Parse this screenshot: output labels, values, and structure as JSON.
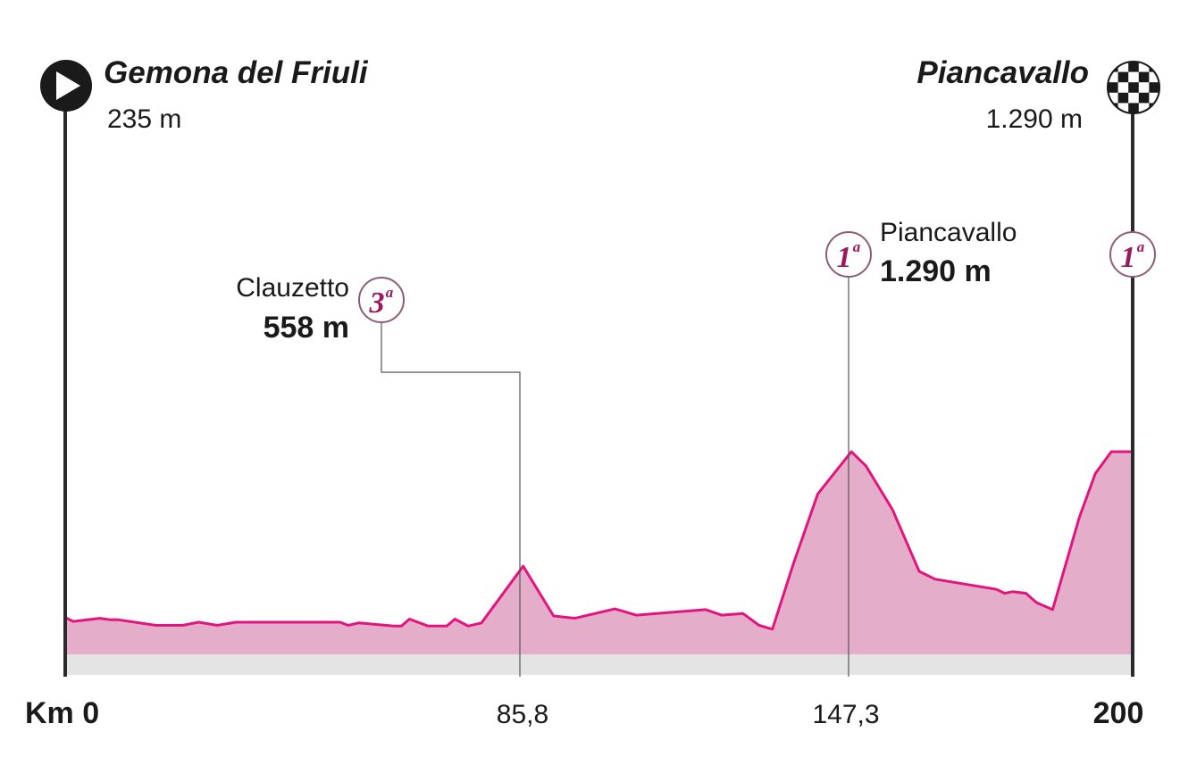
{
  "colors": {
    "profile_fill": "#e4aeca",
    "profile_line": "#e2157e",
    "ground": "#e4e4e4",
    "pole": "#2a2a2a",
    "leader": "#555555",
    "badge_border": "#8d5d77",
    "badge_text": "#9b1a5c"
  },
  "chart_data": {
    "type": "area",
    "xlim": [
      0,
      200
    ],
    "x_ticks": [
      {
        "value": 0,
        "label": "Km 0"
      },
      {
        "value": 85.8,
        "label": "85,8"
      },
      {
        "value": 147.3,
        "label": "147,3"
      },
      {
        "value": 200,
        "label": "200"
      }
    ],
    "start": {
      "name": "Gemona del Friuli",
      "altitude": "235 m",
      "icon": "start-play-icon"
    },
    "finish": {
      "name": "Piancavallo",
      "altitude": "1.290 m",
      "icon": "finish-checkered-flag-icon"
    },
    "climbs": [
      {
        "km": 85.8,
        "name": "Clauzetto",
        "altitude": "558 m",
        "category": "3",
        "sup": "a"
      },
      {
        "km": 147.3,
        "name": "Piancavallo",
        "altitude": "1.290 m",
        "category": "1",
        "sup": "a"
      },
      {
        "km": 200,
        "category": "1",
        "sup": "a"
      }
    ],
    "elevation_profile": [
      [
        0,
        230
      ],
      [
        1.5,
        205
      ],
      [
        6.5,
        225
      ],
      [
        8.5,
        215
      ],
      [
        10,
        215
      ],
      [
        17,
        180
      ],
      [
        22,
        180
      ],
      [
        25,
        200
      ],
      [
        28.5,
        180
      ],
      [
        32,
        200
      ],
      [
        51.5,
        200
      ],
      [
        53,
        180
      ],
      [
        55,
        195
      ],
      [
        61.5,
        175
      ],
      [
        63,
        175
      ],
      [
        64.5,
        220
      ],
      [
        68,
        175
      ],
      [
        71.5,
        175
      ],
      [
        73,
        220
      ],
      [
        75.5,
        175
      ],
      [
        78,
        195
      ],
      [
        85.8,
        558
      ],
      [
        91.5,
        240
      ],
      [
        95.5,
        225
      ],
      [
        103,
        285
      ],
      [
        107,
        245
      ],
      [
        120,
        280
      ],
      [
        123,
        245
      ],
      [
        127,
        255
      ],
      [
        130,
        180
      ],
      [
        132.5,
        155
      ],
      [
        136.5,
        580
      ],
      [
        141,
        1020
      ],
      [
        147.3,
        1290
      ],
      [
        150,
        1200
      ],
      [
        155,
        920
      ],
      [
        160,
        525
      ],
      [
        163,
        475
      ],
      [
        174.5,
        410
      ],
      [
        176,
        385
      ],
      [
        177.5,
        395
      ],
      [
        180,
        385
      ],
      [
        182,
        325
      ],
      [
        185,
        280
      ],
      [
        190,
        870
      ],
      [
        193,
        1150
      ],
      [
        196,
        1290
      ]
    ]
  }
}
